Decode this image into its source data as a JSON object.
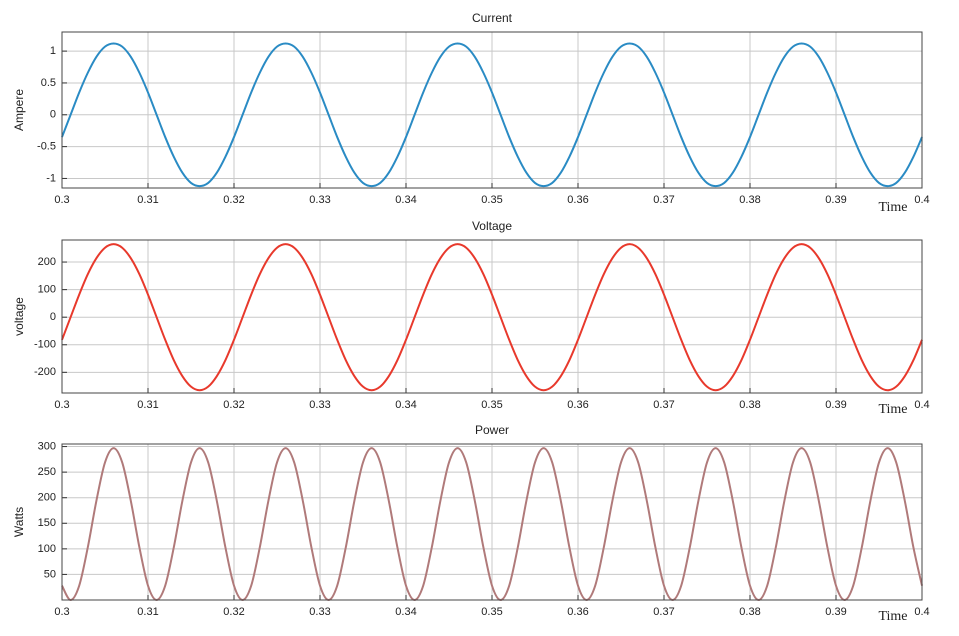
{
  "chart_data": [
    {
      "type": "line",
      "title": "Current",
      "ylabel": "Ampere",
      "xlabel": "Time",
      "color": "#2a8bc4",
      "grid": true,
      "xlim": [
        0.3,
        0.4
      ],
      "xticks": [
        0.3,
        0.31,
        0.32,
        0.33,
        0.34,
        0.35,
        0.36,
        0.37,
        0.38,
        0.39,
        0.4
      ],
      "ylim": [
        -1.15,
        1.3
      ],
      "yticks": [
        -1,
        -0.5,
        0,
        0.5,
        1
      ],
      "x": [
        0.3,
        0.301,
        0.302,
        0.303,
        0.304,
        0.305,
        0.306,
        0.307,
        0.308,
        0.309,
        0.31,
        0.311,
        0.312,
        0.313,
        0.314,
        0.315,
        0.316,
        0.317,
        0.318,
        0.319,
        0.32,
        0.321,
        0.322,
        0.323,
        0.324,
        0.325,
        0.326,
        0.327,
        0.328,
        0.329,
        0.33,
        0.331,
        0.332,
        0.333,
        0.334,
        0.335,
        0.336,
        0.337,
        0.338,
        0.339,
        0.34,
        0.341,
        0.342,
        0.343,
        0.344,
        0.345,
        0.346,
        0.347,
        0.348,
        0.349,
        0.35,
        0.351,
        0.352,
        0.353,
        0.354,
        0.355,
        0.356,
        0.357,
        0.358,
        0.359,
        0.36,
        0.361,
        0.362,
        0.363,
        0.364,
        0.365,
        0.366,
        0.367,
        0.368,
        0.369,
        0.37,
        0.371,
        0.372,
        0.373,
        0.374,
        0.375,
        0.376,
        0.377,
        0.378,
        0.379,
        0.38,
        0.381,
        0.382,
        0.383,
        0.384,
        0.385,
        0.386,
        0.387,
        0.388,
        0.389,
        0.39,
        0.391,
        0.392,
        0.393,
        0.394,
        0.395,
        0.396,
        0.397,
        0.398,
        0.399,
        0.4
      ],
      "values": [
        -0.35,
        0,
        0.35,
        0.66,
        0.91,
        1.07,
        1.12,
        1.07,
        0.91,
        0.66,
        0.35,
        0,
        -0.35,
        -0.66,
        -0.91,
        -1.07,
        -1.12,
        -1.07,
        -0.91,
        -0.66,
        -0.35,
        0,
        0.35,
        0.66,
        0.91,
        1.07,
        1.12,
        1.07,
        0.91,
        0.66,
        0.35,
        0,
        -0.35,
        -0.66,
        -0.91,
        -1.07,
        -1.12,
        -1.07,
        -0.91,
        -0.66,
        -0.35,
        0,
        0.35,
        0.66,
        0.91,
        1.07,
        1.12,
        1.07,
        0.91,
        0.66,
        0.35,
        0,
        -0.35,
        -0.66,
        -0.91,
        -1.07,
        -1.12,
        -1.07,
        -0.91,
        -0.66,
        -0.35,
        0,
        0.35,
        0.66,
        0.91,
        1.07,
        1.12,
        1.07,
        0.91,
        0.66,
        0.35,
        0,
        -0.35,
        -0.66,
        -0.91,
        -1.07,
        -1.12,
        -1.07,
        -0.91,
        -0.66,
        -0.35,
        0,
        0.35,
        0.66,
        0.91,
        1.07,
        1.12,
        1.07,
        0.91,
        0.66,
        0.35,
        0,
        -0.35,
        -0.66,
        -0.91,
        -1.07,
        -1.12,
        -1.07,
        -0.91,
        -0.66,
        -0.35
      ]
    },
    {
      "type": "line",
      "title": "Voltage",
      "ylabel": "voltage",
      "xlabel": "Time",
      "color": "#e8392c",
      "grid": true,
      "xlim": [
        0.3,
        0.4
      ],
      "xticks": [
        0.3,
        0.31,
        0.32,
        0.33,
        0.34,
        0.35,
        0.36,
        0.37,
        0.38,
        0.39,
        0.4
      ],
      "ylim": [
        -275,
        280
      ],
      "yticks": [
        -200,
        -100,
        0,
        100,
        200
      ],
      "x": [
        0.3,
        0.301,
        0.302,
        0.303,
        0.304,
        0.305,
        0.306,
        0.307,
        0.308,
        0.309,
        0.31,
        0.311,
        0.312,
        0.313,
        0.314,
        0.315,
        0.316,
        0.317,
        0.318,
        0.319,
        0.32,
        0.321,
        0.322,
        0.323,
        0.324,
        0.325,
        0.326,
        0.327,
        0.328,
        0.329,
        0.33,
        0.331,
        0.332,
        0.333,
        0.334,
        0.335,
        0.336,
        0.337,
        0.338,
        0.339,
        0.34,
        0.341,
        0.342,
        0.343,
        0.344,
        0.345,
        0.346,
        0.347,
        0.348,
        0.349,
        0.35,
        0.351,
        0.352,
        0.353,
        0.354,
        0.355,
        0.356,
        0.357,
        0.358,
        0.359,
        0.36,
        0.361,
        0.362,
        0.363,
        0.364,
        0.365,
        0.366,
        0.367,
        0.368,
        0.369,
        0.37,
        0.371,
        0.372,
        0.373,
        0.374,
        0.375,
        0.376,
        0.377,
        0.378,
        0.379,
        0.38,
        0.381,
        0.382,
        0.383,
        0.384,
        0.385,
        0.386,
        0.387,
        0.388,
        0.389,
        0.39,
        0.391,
        0.392,
        0.393,
        0.394,
        0.395,
        0.396,
        0.397,
        0.398,
        0.399,
        0.4
      ],
      "values": [
        -82,
        0,
        82,
        156,
        214,
        252,
        265,
        252,
        214,
        156,
        82,
        0,
        -82,
        -156,
        -214,
        -252,
        -265,
        -252,
        -214,
        -156,
        -82,
        0,
        82,
        156,
        214,
        252,
        265,
        252,
        214,
        156,
        82,
        0,
        -82,
        -156,
        -214,
        -252,
        -265,
        -252,
        -214,
        -156,
        -82,
        0,
        82,
        156,
        214,
        252,
        265,
        252,
        214,
        156,
        82,
        0,
        -82,
        -156,
        -214,
        -252,
        -265,
        -252,
        -214,
        -156,
        -82,
        0,
        82,
        156,
        214,
        252,
        265,
        252,
        214,
        156,
        82,
        0,
        -82,
        -156,
        -214,
        -252,
        -265,
        -252,
        -214,
        -156,
        -82,
        0,
        82,
        156,
        214,
        252,
        265,
        252,
        214,
        156,
        82,
        0,
        -82,
        -156,
        -214,
        -252,
        -265,
        -252,
        -214,
        -156,
        -82
      ]
    },
    {
      "type": "line",
      "title": "Power",
      "ylabel": "Watts",
      "xlabel": "Time",
      "color": "#b07a7a",
      "grid": true,
      "xlim": [
        0.3,
        0.4
      ],
      "xticks": [
        0.3,
        0.31,
        0.32,
        0.33,
        0.34,
        0.35,
        0.36,
        0.37,
        0.38,
        0.39,
        0.4
      ],
      "ylim": [
        0,
        305
      ],
      "yticks": [
        50,
        100,
        150,
        200,
        250,
        300
      ],
      "x": [
        0.3,
        0.301,
        0.302,
        0.303,
        0.304,
        0.305,
        0.306,
        0.307,
        0.308,
        0.309,
        0.31,
        0.311,
        0.312,
        0.313,
        0.314,
        0.315,
        0.316,
        0.317,
        0.318,
        0.319,
        0.32,
        0.321,
        0.322,
        0.323,
        0.324,
        0.325,
        0.326,
        0.327,
        0.328,
        0.329,
        0.33,
        0.331,
        0.332,
        0.333,
        0.334,
        0.335,
        0.336,
        0.337,
        0.338,
        0.339,
        0.34,
        0.341,
        0.342,
        0.343,
        0.344,
        0.345,
        0.346,
        0.347,
        0.348,
        0.349,
        0.35,
        0.351,
        0.352,
        0.353,
        0.354,
        0.355,
        0.356,
        0.357,
        0.358,
        0.359,
        0.36,
        0.361,
        0.362,
        0.363,
        0.364,
        0.365,
        0.366,
        0.367,
        0.368,
        0.369,
        0.37,
        0.371,
        0.372,
        0.373,
        0.374,
        0.375,
        0.376,
        0.377,
        0.378,
        0.379,
        0.38,
        0.381,
        0.382,
        0.383,
        0.384,
        0.385,
        0.386,
        0.387,
        0.388,
        0.389,
        0.39,
        0.391,
        0.392,
        0.393,
        0.394,
        0.395,
        0.396,
        0.397,
        0.398,
        0.399,
        0.4
      ],
      "values": [
        28,
        0,
        28,
        103,
        194,
        269,
        297,
        269,
        194,
        103,
        28,
        0,
        28,
        103,
        194,
        269,
        297,
        269,
        194,
        103,
        28,
        0,
        28,
        103,
        194,
        269,
        297,
        269,
        194,
        103,
        28,
        0,
        28,
        103,
        194,
        269,
        297,
        269,
        194,
        103,
        28,
        0,
        28,
        103,
        194,
        269,
        297,
        269,
        194,
        103,
        28,
        0,
        28,
        103,
        194,
        269,
        297,
        269,
        194,
        103,
        28,
        0,
        28,
        103,
        194,
        269,
        297,
        269,
        194,
        103,
        28,
        0,
        28,
        103,
        194,
        269,
        297,
        269,
        194,
        103,
        28,
        0,
        28,
        103,
        194,
        269,
        297,
        269,
        194,
        103,
        28,
        0,
        28,
        103,
        194,
        269,
        297,
        269,
        194,
        103,
        28
      ]
    }
  ]
}
